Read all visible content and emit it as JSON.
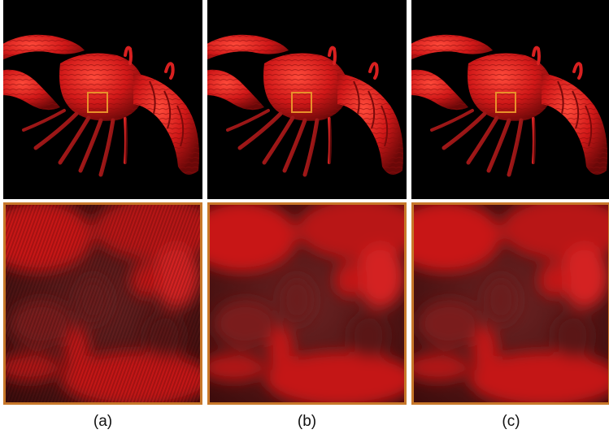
{
  "figure": {
    "panels": [
      {
        "caption": "(a)",
        "variant": "aliased"
      },
      {
        "caption": "(b)",
        "variant": "smooth"
      },
      {
        "caption": "(c)",
        "variant": "smooth"
      }
    ]
  },
  "colors": {
    "background": "#000000",
    "lobster_red": "#d41a1a",
    "highlight_box": "#e8902a",
    "zoom_border": "#c8782a"
  }
}
